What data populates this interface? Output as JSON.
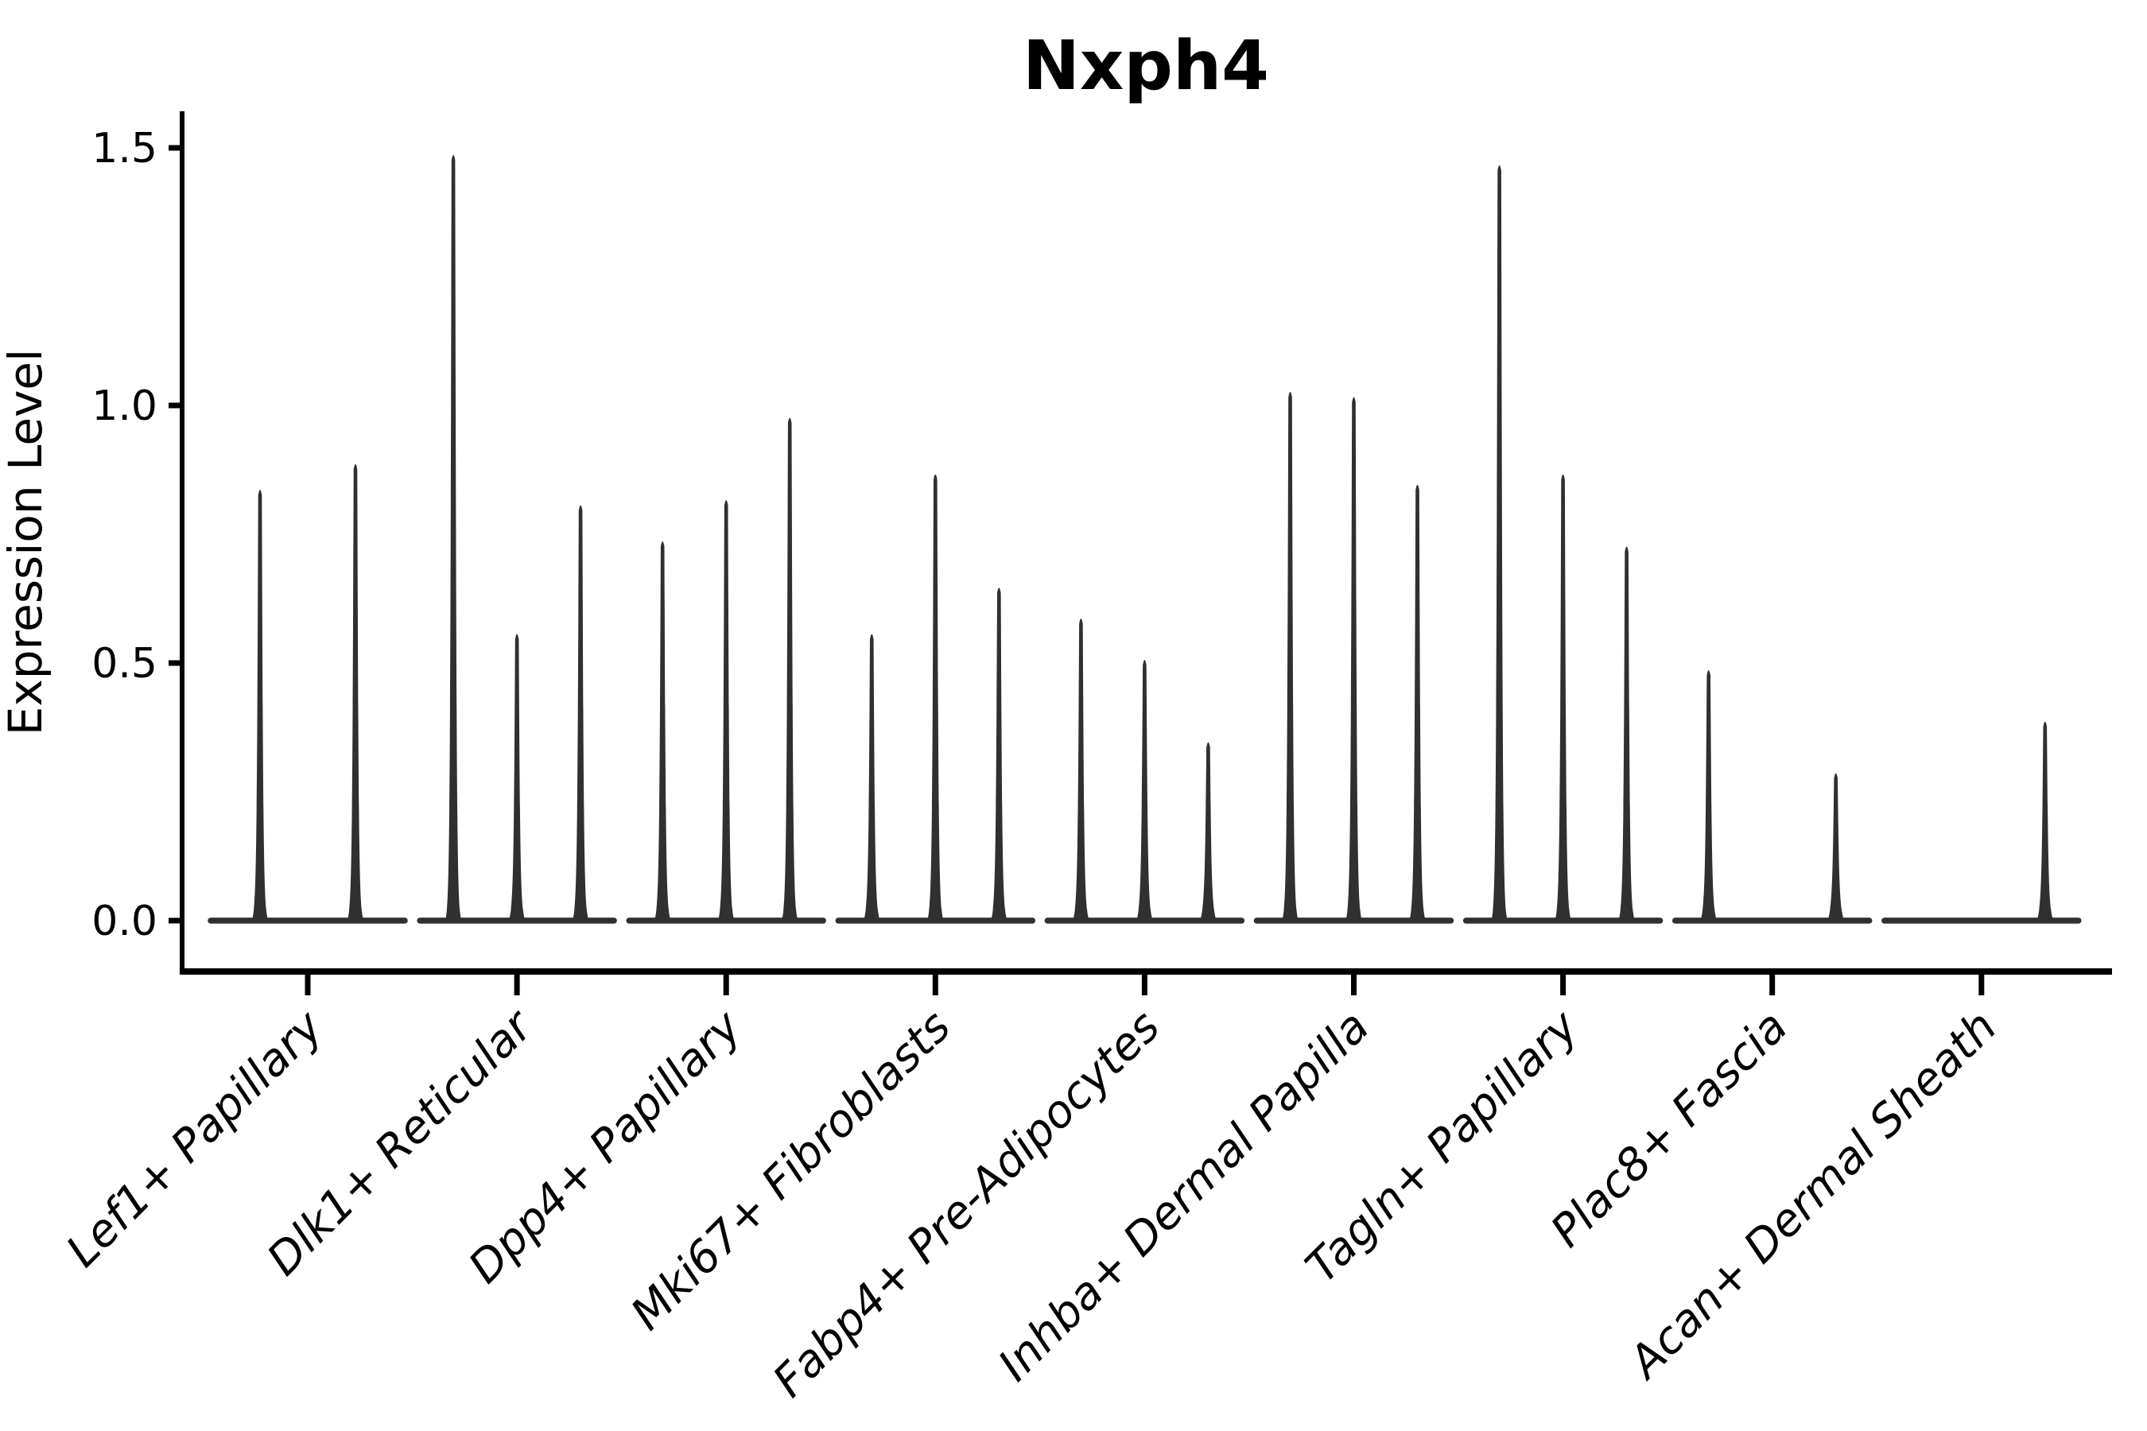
{
  "chart_data": {
    "type": "violin",
    "title": "Nxph4",
    "ylabel": "Expression Level",
    "xlabel": "",
    "grid": false,
    "legend": "none",
    "background_color": "#ffffff",
    "colors": {
      "axis_ink": "#000000",
      "violin_ink": "#303030",
      "text_ink": "#000000"
    },
    "y_axis": {
      "ticks": [
        0.0,
        0.5,
        1.0,
        1.5
      ],
      "tick_labels": [
        "0.0",
        "0.5",
        "1.0",
        "1.5"
      ],
      "ylim": [
        -0.1,
        1.57
      ]
    },
    "categories": [
      "Lef1+ Papillary",
      "Dlk1+ Reticular",
      "Dpp4+ Papillary",
      "Mki67+ Fibroblasts",
      "Fabp4+ Pre-Adipocytes",
      "Inhba+ Dermal Papilla",
      "Tagln+ Papillary",
      "Plac8+ Fascia",
      "Acan+ Dermal Sheath"
    ],
    "groups": [
      {
        "label": "Lef1+ Papillary",
        "violin_max_expression": [
          0.84,
          0.89
        ]
      },
      {
        "label": "Dlk1+ Reticular",
        "violin_max_expression": [
          1.49,
          0.56,
          0.81
        ]
      },
      {
        "label": "Dpp4+ Papillary",
        "violin_max_expression": [
          0.74,
          0.82,
          0.98
        ]
      },
      {
        "label": "Mki67+ Fibroblasts",
        "violin_max_expression": [
          0.56,
          0.87,
          0.65
        ]
      },
      {
        "label": "Fabp4+ Pre-Adipocytes",
        "violin_max_expression": [
          0.59,
          0.51,
          0.35
        ]
      },
      {
        "label": "Inhba+ Dermal Papilla",
        "violin_max_expression": [
          1.03,
          1.02,
          0.85
        ]
      },
      {
        "label": "Tagln+ Papillary",
        "violin_max_expression": [
          1.47,
          0.87,
          0.73
        ]
      },
      {
        "label": "Plac8+ Fascia",
        "violin_max_expression": [
          0.49,
          0,
          0.29
        ]
      },
      {
        "label": "Acan+ Dermal Sheath",
        "violin_max_expression": [
          0,
          0,
          0.39
        ]
      }
    ],
    "notes": "Each group shows thin spike-like violins rising from a flat baseline at expression 0; zero entries are flat violins with no spike."
  }
}
